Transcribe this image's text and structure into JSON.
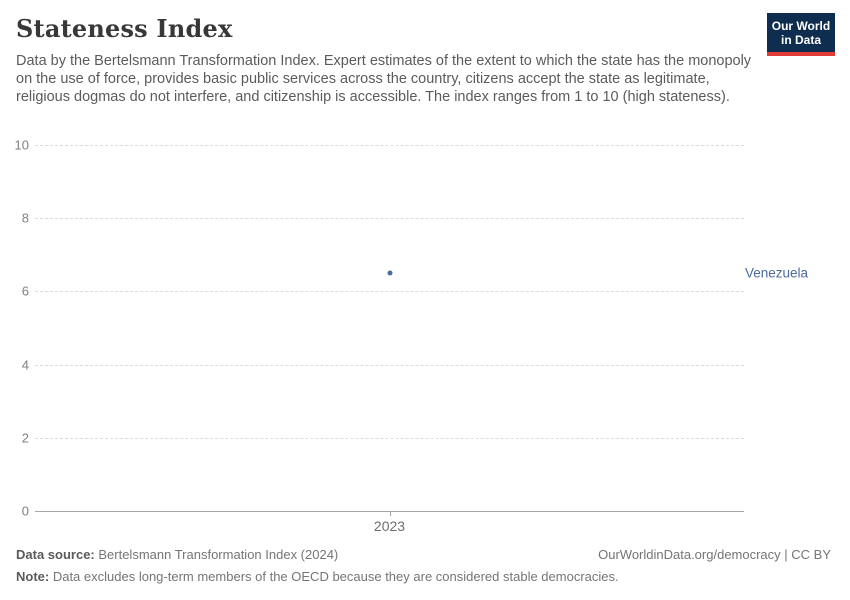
{
  "header": {
    "title": "Stateness Index",
    "subtitle": "Data by the Bertelsmann Transformation Index. Expert estimates of the extent to which the state has the monopoly on the use of force, provides basic public services across the country, citizens accept the state as legitimate, religious dogmas do not interfere, and citizenship is accessible. The index ranges from 1 to 10 (high stateness).",
    "logo": {
      "line1": "Our World",
      "line2": "in Data",
      "bg_color": "#0f2d4e",
      "accent_color": "#e23a36"
    }
  },
  "chart_data": {
    "type": "scatter",
    "title": "Stateness Index",
    "series": [
      {
        "name": "Venezuela",
        "x": [
          2023
        ],
        "values": [
          6.5
        ],
        "color": "#4c6a9c"
      }
    ],
    "xticks": [
      "2023"
    ],
    "yticks": [
      0,
      2,
      4,
      6,
      8,
      10
    ],
    "ylim": [
      0,
      10
    ],
    "xlabel": "",
    "ylabel": "",
    "grid": "horizontal-dashed",
    "legend_position": "right-of-point",
    "colors": {
      "gridline": "#dcdcdc",
      "axis": "#a6a6a6",
      "tick_label": "#808080"
    }
  },
  "footer": {
    "source_label": "Data source:",
    "source_text": " Bertelsmann Transformation Index (2024)",
    "attribution": "OurWorldinData.org/democracy | CC BY",
    "note_label": "Note:",
    "note_text": " Data excludes long-term members of the OECD because they are considered stable democracies."
  }
}
